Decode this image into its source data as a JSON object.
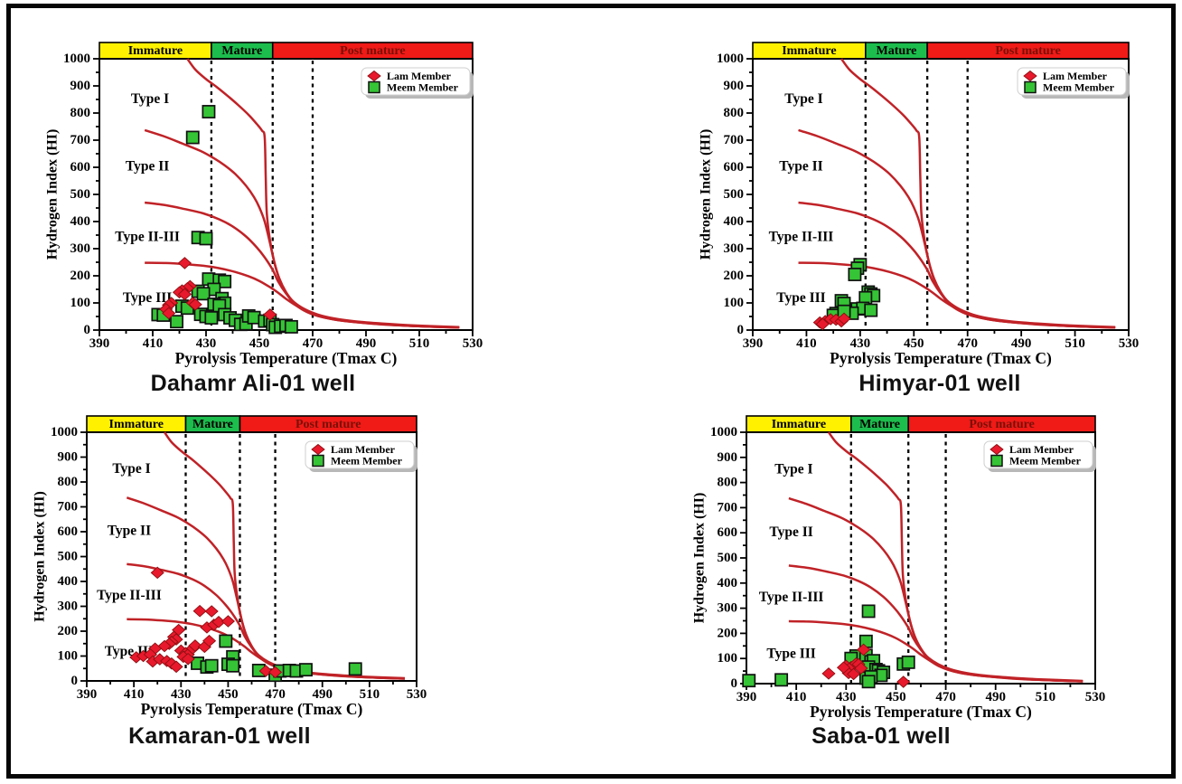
{
  "figure": {
    "background": "#ffffff",
    "border_color": "#000000"
  },
  "legend": {
    "items": [
      {
        "label": "Lam Member",
        "marker": "diamond"
      },
      {
        "label": "Meem Member",
        "marker": "square"
      }
    ]
  },
  "colors": {
    "lam": "#e8192c",
    "meem": "#35c435",
    "curve": "#c02227",
    "bar_yellow": "#fff100",
    "bar_green": "#1dbd4d",
    "bar_red": "#f01a17",
    "post_mature_text": "#7a1008",
    "black": "#000000"
  },
  "axes": {
    "x": {
      "label": "Pyrolysis Temperature (Tmax C)",
      "min": 390,
      "max": 530,
      "major": 20,
      "minor": 10
    },
    "y": {
      "label": "Hydrogen Index (HI)",
      "min": 0,
      "max": 1000,
      "major": 100,
      "minor": 50
    }
  },
  "maturity_zones": [
    {
      "label": "Immature",
      "from": 390,
      "to": 432,
      "fill": "bar_yellow",
      "text": "black"
    },
    {
      "label": "Mature",
      "from": 432,
      "to": 455,
      "fill": "bar_green",
      "text": "black"
    },
    {
      "label": "Post mature",
      "from": 455,
      "to": 530,
      "fill": "bar_red",
      "text": "post_mature_text"
    }
  ],
  "dashed_lines": [
    432,
    455,
    470
  ],
  "kerogen_curves": [
    {
      "label": "Type I",
      "label_at": [
        409,
        852
      ],
      "points": [
        [
          423,
          1000
        ],
        [
          426,
          960
        ],
        [
          430,
          925
        ],
        [
          434,
          896
        ],
        [
          438,
          864
        ],
        [
          442,
          830
        ],
        [
          446,
          793
        ],
        [
          449,
          760
        ],
        [
          451,
          735
        ],
        [
          452,
          710
        ],
        [
          452.4,
          560
        ],
        [
          452.8,
          430
        ],
        [
          454,
          330
        ],
        [
          455.5,
          255
        ],
        [
          457.5,
          190
        ],
        [
          460,
          140
        ],
        [
          463,
          102
        ],
        [
          467,
          74
        ],
        [
          472,
          53
        ],
        [
          478,
          39
        ],
        [
          486,
          29
        ],
        [
          497,
          20
        ],
        [
          510,
          14
        ],
        [
          525,
          9
        ]
      ]
    },
    {
      "label": "Type II",
      "label_at": [
        408,
        603
      ],
      "points": [
        [
          407,
          737
        ],
        [
          414,
          715
        ],
        [
          421,
          688
        ],
        [
          428,
          660
        ],
        [
          433,
          633
        ],
        [
          437,
          607
        ],
        [
          441,
          575
        ],
        [
          445,
          532
        ],
        [
          448,
          490
        ],
        [
          450,
          452
        ],
        [
          452,
          400
        ],
        [
          454,
          320
        ],
        [
          456,
          235
        ],
        [
          458,
          175
        ],
        [
          461,
          122
        ],
        [
          464,
          90
        ],
        [
          468,
          66
        ],
        [
          473,
          49
        ],
        [
          480,
          36
        ],
        [
          490,
          26
        ],
        [
          502,
          18
        ],
        [
          513,
          13
        ],
        [
          525,
          10
        ]
      ]
    },
    {
      "label": "Type II-III",
      "label_at": [
        408,
        343
      ],
      "points": [
        [
          407,
          470
        ],
        [
          415,
          460
        ],
        [
          422,
          446
        ],
        [
          429,
          430
        ],
        [
          435,
          408
        ],
        [
          440,
          382
        ],
        [
          445,
          345
        ],
        [
          449,
          305
        ],
        [
          452,
          268
        ],
        [
          455,
          222
        ],
        [
          457,
          180
        ],
        [
          460,
          135
        ],
        [
          463,
          103
        ],
        [
          467,
          77
        ],
        [
          472,
          57
        ],
        [
          478,
          43
        ],
        [
          486,
          32
        ],
        [
          496,
          24
        ],
        [
          508,
          17
        ],
        [
          525,
          11
        ]
      ]
    },
    {
      "label": "Type III",
      "label_at": [
        408,
        118
      ],
      "points": [
        [
          407,
          248
        ],
        [
          415,
          247
        ],
        [
          422,
          243
        ],
        [
          429,
          237
        ],
        [
          435,
          228
        ],
        [
          441,
          214
        ],
        [
          446,
          198
        ],
        [
          450,
          181
        ],
        [
          454,
          158
        ],
        [
          457,
          138
        ],
        [
          460,
          115
        ],
        [
          464,
          89
        ],
        [
          468,
          68
        ],
        [
          473,
          51
        ],
        [
          479,
          39
        ],
        [
          486,
          30
        ],
        [
          495,
          23
        ],
        [
          506,
          16
        ],
        [
          516,
          12
        ],
        [
          525,
          9
        ]
      ]
    }
  ],
  "chart_data": [
    {
      "type": "scatter",
      "title": "Dahamr Ali-01 well",
      "xlabel": "Pyrolysis Temperature (Tmax C)",
      "ylabel": "Hydrogen Index (HI)",
      "xlim": [
        390,
        530
      ],
      "ylim": [
        0,
        1000
      ],
      "series": [
        {
          "name": "Lam Member",
          "marker": "diamond",
          "points": [
            [
              422,
              247
            ],
            [
              424,
              162
            ],
            [
              423,
              154
            ],
            [
              421,
              146
            ],
            [
              420,
              139
            ],
            [
              422,
              132
            ],
            [
              417,
              100
            ],
            [
              416,
              92
            ],
            [
              415,
              77
            ],
            [
              425,
              100
            ],
            [
              426,
              94
            ],
            [
              416,
              62
            ],
            [
              454,
              57
            ]
          ]
        },
        {
          "name": "Meem Member",
          "marker": "square",
          "points": [
            [
              431,
              805
            ],
            [
              425,
              710
            ],
            [
              427,
              341
            ],
            [
              430,
              337
            ],
            [
              431,
              188
            ],
            [
              435,
              184
            ],
            [
              437,
              179
            ],
            [
              433,
              150
            ],
            [
              427,
              143
            ],
            [
              429,
              134
            ],
            [
              436,
              116
            ],
            [
              437,
              99
            ],
            [
              433,
              95
            ],
            [
              435,
              90
            ],
            [
              421,
              88
            ],
            [
              423,
              81
            ],
            [
              412,
              57
            ],
            [
              414,
              55
            ],
            [
              419,
              31
            ],
            [
              428,
              58
            ],
            [
              430,
              50
            ],
            [
              432,
              45
            ],
            [
              437,
              57
            ],
            [
              439,
              45
            ],
            [
              441,
              36
            ],
            [
              443,
              21
            ],
            [
              445,
              23
            ],
            [
              446,
              52
            ],
            [
              448,
              46
            ],
            [
              452,
              33
            ],
            [
              454,
              36
            ],
            [
              455,
              20
            ],
            [
              456,
              10
            ],
            [
              458,
              14
            ],
            [
              460,
              17
            ],
            [
              462,
              12
            ]
          ]
        }
      ]
    },
    {
      "type": "scatter",
      "title": "Himyar-01 well",
      "xlabel": "Pyrolysis Temperature (Tmax C)",
      "ylabel": "Hydrogen Index (HI)",
      "xlim": [
        390,
        530
      ],
      "ylim": [
        0,
        1000
      ],
      "series": [
        {
          "name": "Lam Member",
          "marker": "diamond",
          "points": [
            [
              415,
              28
            ],
            [
              417,
              33
            ],
            [
              419,
              40
            ],
            [
              421,
              38
            ],
            [
              423,
              32
            ],
            [
              424,
              42
            ],
            [
              416,
              22
            ]
          ]
        },
        {
          "name": "Meem Member",
          "marker": "square",
          "points": [
            [
              430,
              241
            ],
            [
              429,
              228
            ],
            [
              428,
              205
            ],
            [
              433,
              140
            ],
            [
              434,
              133
            ],
            [
              435,
              127
            ],
            [
              432,
              119
            ],
            [
              423,
              108
            ],
            [
              424,
              98
            ],
            [
              429,
              78
            ],
            [
              431,
              80
            ],
            [
              434,
              73
            ],
            [
              427,
              62
            ],
            [
              421,
              61
            ],
            [
              420,
              54
            ],
            [
              424,
              69
            ]
          ]
        }
      ]
    },
    {
      "type": "scatter",
      "title": "Kamaran-01 well",
      "xlabel": "Pyrolysis Temperature (Tmax C)",
      "ylabel": "Hydrogen Index (HI)",
      "xlim": [
        390,
        530
      ],
      "ylim": [
        0,
        1000
      ],
      "series": [
        {
          "name": "Lam Member",
          "marker": "diamond",
          "points": [
            [
              420,
              435
            ],
            [
              438,
              281
            ],
            [
              443,
              280
            ],
            [
              441,
              215
            ],
            [
              444,
              226
            ],
            [
              446,
              237
            ],
            [
              450,
              240
            ],
            [
              429,
              205
            ],
            [
              427,
              177
            ],
            [
              428,
              167
            ],
            [
              426,
              157
            ],
            [
              425,
              149
            ],
            [
              423,
              140
            ],
            [
              419,
              130
            ],
            [
              430,
              122
            ],
            [
              432,
              112
            ],
            [
              433,
              106
            ],
            [
              435,
              131
            ],
            [
              436,
              142
            ],
            [
              440,
              137
            ],
            [
              442,
              161
            ],
            [
              411,
              95
            ],
            [
              414,
              100
            ],
            [
              417,
              106
            ],
            [
              418,
              78
            ],
            [
              421,
              87
            ],
            [
              424,
              80
            ],
            [
              426,
              70
            ],
            [
              428,
              57
            ],
            [
              431,
              97
            ],
            [
              433,
              88
            ],
            [
              466,
              40
            ],
            [
              470,
              35
            ]
          ]
        },
        {
          "name": "Meem Member",
          "marker": "square",
          "points": [
            [
              449,
              160
            ],
            [
              452,
              97
            ],
            [
              450,
              67
            ],
            [
              452,
              61
            ],
            [
              437,
              71
            ],
            [
              441,
              56
            ],
            [
              443,
              61
            ],
            [
              463,
              42
            ],
            [
              470,
              23
            ],
            [
              472,
              40
            ],
            [
              476,
              42
            ],
            [
              479,
              40
            ],
            [
              483,
              45
            ],
            [
              504,
              48
            ]
          ]
        }
      ]
    },
    {
      "type": "scatter",
      "title": "Saba-01 well",
      "xlabel": "Pyrolysis Temperature (Tmax C)",
      "ylabel": "Hydrogen Index (HI)",
      "xlim": [
        390,
        530
      ],
      "ylim": [
        0,
        1000
      ],
      "series": [
        {
          "name": "Lam Member",
          "marker": "diamond",
          "points": [
            [
              437,
              135
            ],
            [
              430,
              71
            ],
            [
              432,
              66
            ],
            [
              434,
              80
            ],
            [
              435,
              77
            ],
            [
              436,
              61
            ],
            [
              431,
              42
            ],
            [
              433,
              38
            ],
            [
              423,
              40
            ],
            [
              429,
              64
            ],
            [
              453,
              7
            ]
          ]
        },
        {
          "name": "Meem Member",
          "marker": "square",
          "points": [
            [
              391,
              12
            ],
            [
              404,
              15
            ],
            [
              439,
              288
            ],
            [
              438,
              168
            ],
            [
              434,
              110
            ],
            [
              432,
              100
            ],
            [
              438,
              112
            ],
            [
              440,
              87
            ],
            [
              441,
              91
            ],
            [
              439,
              66
            ],
            [
              442,
              56
            ],
            [
              443,
              51
            ],
            [
              445,
              45
            ],
            [
              444,
              33
            ],
            [
              438,
              22
            ],
            [
              440,
              27
            ],
            [
              439,
              8
            ],
            [
              453,
              78
            ],
            [
              455,
              85
            ]
          ]
        }
      ]
    }
  ]
}
